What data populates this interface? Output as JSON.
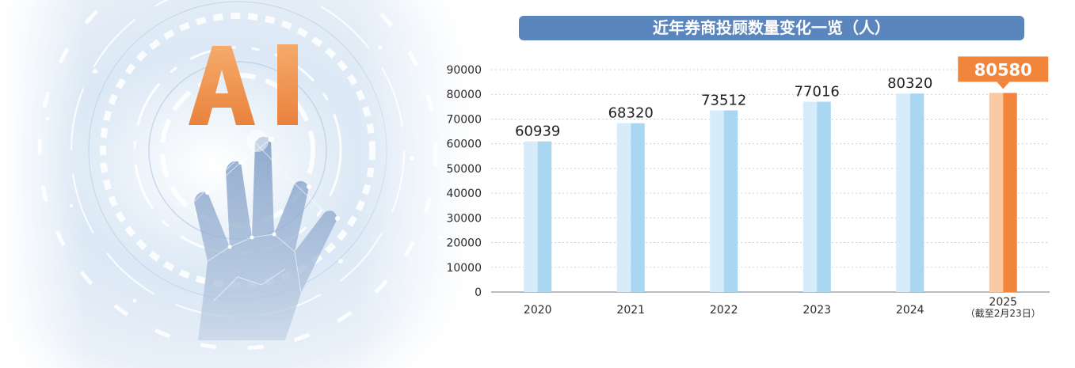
{
  "hero": {
    "ai_text": "AI",
    "colors": {
      "ai_orange": "#f08a3c",
      "hand_blue": "#3d5f8f",
      "glow": "#e8f1fb"
    }
  },
  "chart_data": {
    "type": "bar",
    "title": "近年券商投顾数量变化一览（人）",
    "categories": [
      "2020",
      "2021",
      "2022",
      "2023",
      "2024",
      "2025"
    ],
    "category_notes": [
      "",
      "",
      "",
      "",
      "",
      "（截至2月23日）"
    ],
    "values": [
      60939,
      68320,
      73512,
      77016,
      80320,
      80580
    ],
    "ylim": [
      0,
      90000
    ],
    "yticks": [
      0,
      10000,
      20000,
      30000,
      40000,
      50000,
      60000,
      70000,
      80000,
      90000
    ],
    "grid": true,
    "highlight_index": 5,
    "colors": {
      "bar": "#a9d6f1",
      "bar_light": "#d6ecfa",
      "highlight": "#f1853c",
      "highlight_light": "#f9c9a3",
      "title_bg": "#5b86bd",
      "grid": "#bfc6cf"
    }
  }
}
